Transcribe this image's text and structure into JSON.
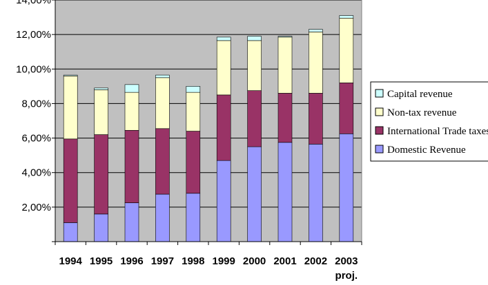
{
  "chart_data": {
    "type": "bar",
    "stacked": true,
    "title": "",
    "xlabel": "",
    "ylabel": "",
    "categories": [
      "1994",
      "1995",
      "1996",
      "1997",
      "1998",
      "1999",
      "2000",
      "2001",
      "2002",
      "2003 proj."
    ],
    "series": [
      {
        "name": "Domestic Revenue",
        "color": "#9999ff",
        "values": [
          1.1,
          1.6,
          2.25,
          2.75,
          2.8,
          4.7,
          5.5,
          5.75,
          5.65,
          6.25
        ]
      },
      {
        "name": "International Trade taxes",
        "color": "#993366",
        "values": [
          4.85,
          4.6,
          4.2,
          3.8,
          3.6,
          3.8,
          3.25,
          2.85,
          2.95,
          2.95
        ]
      },
      {
        "name": "Non-tax revenue",
        "color": "#ffffcc",
        "values": [
          3.65,
          2.6,
          2.2,
          2.95,
          2.25,
          3.15,
          2.9,
          3.25,
          3.55,
          3.75
        ]
      },
      {
        "name": "Capital revenue",
        "color": "#ccffff",
        "values": [
          0.05,
          0.1,
          0.45,
          0.15,
          0.35,
          0.2,
          0.25,
          0.05,
          0.15,
          0.15
        ]
      }
    ],
    "ylim": [
      0,
      14
    ],
    "yticks": [
      "",
      "2,00%",
      "4,00%",
      "6,00%",
      "8,00%",
      "10,00%",
      "12,00%",
      "14,00%"
    ],
    "grid": true,
    "legend_position": "right",
    "legend_order": [
      "Capital revenue",
      "Non-tax revenue",
      "International Trade taxes",
      "Domestic Revenue"
    ],
    "plot_background": "#c0c0c0",
    "gridline_color": "#000000"
  }
}
